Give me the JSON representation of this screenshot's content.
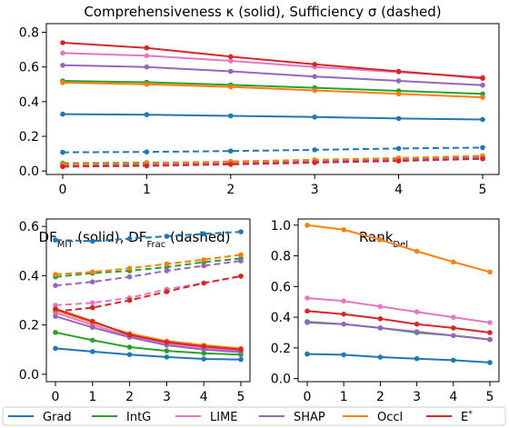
{
  "chart_data": [
    {
      "type": "line",
      "title": "Comprehensiveness κ (solid), Sufficiency σ (dashed)",
      "x": [
        0,
        1,
        2,
        3,
        4,
        5
      ],
      "xticks": [
        "0",
        "1",
        "2",
        "3",
        "4",
        "5"
      ],
      "ylim": [
        -0.02,
        0.85
      ],
      "yticks": [
        "0.0",
        "0.2",
        "0.4",
        "0.6",
        "0.8"
      ],
      "series": [
        {
          "name": "Grad",
          "style": "solid",
          "values": [
            0.328,
            0.325,
            0.318,
            0.311,
            0.303,
            0.297
          ]
        },
        {
          "name": "IntG",
          "style": "solid",
          "values": [
            0.52,
            0.512,
            0.497,
            0.48,
            0.462,
            0.445
          ]
        },
        {
          "name": "LIME",
          "style": "solid",
          "values": [
            0.68,
            0.665,
            0.635,
            0.6,
            0.57,
            0.54
          ]
        },
        {
          "name": "SHAP",
          "style": "solid",
          "values": [
            0.61,
            0.6,
            0.575,
            0.545,
            0.52,
            0.495
          ]
        },
        {
          "name": "Occl",
          "style": "solid",
          "values": [
            0.51,
            0.5,
            0.485,
            0.465,
            0.445,
            0.425
          ]
        },
        {
          "name": "E*",
          "style": "solid",
          "values": [
            0.74,
            0.71,
            0.66,
            0.615,
            0.575,
            0.535
          ]
        },
        {
          "name": "Grad",
          "style": "dashed",
          "values": [
            0.108,
            0.11,
            0.115,
            0.122,
            0.13,
            0.135
          ]
        },
        {
          "name": "IntG",
          "style": "dashed",
          "values": [
            0.045,
            0.048,
            0.052,
            0.058,
            0.066,
            0.075
          ]
        },
        {
          "name": "LIME",
          "style": "dashed",
          "values": [
            0.035,
            0.04,
            0.048,
            0.058,
            0.07,
            0.082
          ]
        },
        {
          "name": "SHAP",
          "style": "dashed",
          "values": [
            0.03,
            0.035,
            0.043,
            0.055,
            0.067,
            0.078
          ]
        },
        {
          "name": "Occl",
          "style": "dashed",
          "values": [
            0.04,
            0.045,
            0.055,
            0.065,
            0.075,
            0.088
          ]
        },
        {
          "name": "E*",
          "style": "dashed",
          "values": [
            0.025,
            0.03,
            0.038,
            0.048,
            0.058,
            0.07
          ]
        }
      ]
    },
    {
      "type": "line",
      "title": "DF_MIT (solid), DF_Frac (dashed)",
      "x": [
        0,
        1,
        2,
        3,
        4,
        5
      ],
      "xticks": [
        "0",
        "1",
        "2",
        "3",
        "4",
        "5"
      ],
      "ylim": [
        -0.03,
        0.63
      ],
      "yticks": [
        "0.0",
        "0.2",
        "0.4",
        "0.6"
      ],
      "series": [
        {
          "name": "Grad",
          "style": "solid",
          "values": [
            0.105,
            0.092,
            0.08,
            0.07,
            0.062,
            0.06
          ]
        },
        {
          "name": "IntG",
          "style": "solid",
          "values": [
            0.17,
            0.138,
            0.11,
            0.095,
            0.085,
            0.08
          ]
        },
        {
          "name": "LIME",
          "style": "solid",
          "values": [
            0.25,
            0.2,
            0.155,
            0.125,
            0.108,
            0.095
          ]
        },
        {
          "name": "SHAP",
          "style": "solid",
          "values": [
            0.235,
            0.19,
            0.15,
            0.118,
            0.1,
            0.09
          ]
        },
        {
          "name": "Occl",
          "style": "solid",
          "values": [
            0.26,
            0.21,
            0.165,
            0.135,
            0.118,
            0.105
          ]
        },
        {
          "name": "E*",
          "style": "solid",
          "values": [
            0.265,
            0.215,
            0.16,
            0.13,
            0.113,
            0.1
          ]
        },
        {
          "name": "Grad",
          "style": "dashed",
          "values": [
            0.545,
            0.54,
            0.55,
            0.56,
            0.57,
            0.578
          ]
        },
        {
          "name": "IntG",
          "style": "dashed",
          "values": [
            0.395,
            0.41,
            0.42,
            0.435,
            0.455,
            0.47
          ]
        },
        {
          "name": "LIME",
          "style": "dashed",
          "values": [
            0.28,
            0.29,
            0.31,
            0.345,
            0.37,
            0.398
          ]
        },
        {
          "name": "SHAP",
          "style": "dashed",
          "values": [
            0.36,
            0.375,
            0.395,
            0.42,
            0.44,
            0.46
          ]
        },
        {
          "name": "Occl",
          "style": "dashed",
          "values": [
            0.405,
            0.415,
            0.43,
            0.448,
            0.465,
            0.485
          ]
        },
        {
          "name": "E*",
          "style": "dashed",
          "values": [
            0.255,
            0.27,
            0.3,
            0.335,
            0.37,
            0.398
          ]
        }
      ]
    },
    {
      "type": "line",
      "title": "Rank_Del",
      "x": [
        0,
        1,
        2,
        3,
        4,
        5
      ],
      "xticks": [
        "0",
        "1",
        "2",
        "3",
        "4",
        "5"
      ],
      "ylim": [
        -0.02,
        1.04
      ],
      "yticks": [
        "0.0",
        "0.2",
        "0.4",
        "0.6",
        "0.8",
        "1.0"
      ],
      "series": [
        {
          "name": "Grad",
          "style": "solid",
          "values": [
            0.16,
            0.155,
            0.14,
            0.13,
            0.12,
            0.105
          ]
        },
        {
          "name": "IntG",
          "style": "solid",
          "values": [
            0.37,
            0.355,
            0.33,
            0.3,
            0.28,
            0.255
          ]
        },
        {
          "name": "LIME",
          "style": "solid",
          "values": [
            0.525,
            0.505,
            0.47,
            0.435,
            0.4,
            0.365
          ]
        },
        {
          "name": "SHAP",
          "style": "solid",
          "values": [
            0.365,
            0.355,
            0.33,
            0.305,
            0.28,
            0.255
          ]
        },
        {
          "name": "Occl",
          "style": "solid",
          "values": [
            1.0,
            0.97,
            0.905,
            0.83,
            0.76,
            0.695
          ]
        },
        {
          "name": "E*",
          "style": "solid",
          "values": [
            0.44,
            0.42,
            0.39,
            0.355,
            0.33,
            0.3
          ]
        }
      ]
    }
  ],
  "legend": {
    "placement": "bottom",
    "items": [
      {
        "label": "Grad",
        "color": "#1f77b4"
      },
      {
        "label": "IntG",
        "color": "#2ca02c"
      },
      {
        "label": "LIME",
        "color": "#e377c2"
      },
      {
        "label": "SHAP",
        "color": "#9467bd"
      },
      {
        "label": "Occl",
        "color": "#ff7f0e"
      },
      {
        "label": "E",
        "sup": "*",
        "color": "#d62728"
      }
    ]
  },
  "colors": {
    "Grad": "#1f77b4",
    "IntG": "#2ca02c",
    "LIME": "#e377c2",
    "SHAP": "#9467bd",
    "Occl": "#ff7f0e",
    "E*": "#d62728"
  }
}
